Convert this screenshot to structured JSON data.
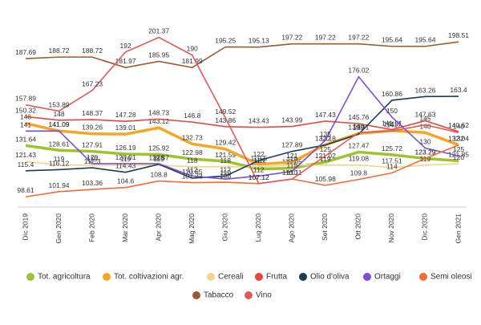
{
  "chart_data": {
    "type": "line",
    "categories": [
      "Dic 2019",
      "Gen 2020",
      "Feb 2020",
      "Mar 2020",
      "Apr 2020",
      "Mag 2020",
      "Giu 2020",
      "Lug 2020",
      "Ago 2020",
      "Set 2020",
      "Ott 2020",
      "Nov 2020",
      "Dic 2020",
      "Gen 2021"
    ],
    "ylim": [
      92,
      210
    ],
    "series": [
      {
        "name": "Tot. agricoltura",
        "color": "#9dc42f",
        "values": [
          131.64,
          128.61,
          127.91,
          126.19,
          125.92,
          122.98,
          121.59,
          116.5,
          117.05,
          121.02,
          127.47,
          125.72,
          123.29,
          121.85
        ]
      },
      {
        "name": "Tot. coltivazioni agr.",
        "color": "#f5a623",
        "values": [
          146,
          141.09,
          139.26,
          139.01,
          143.12,
          132.73,
          129.42,
          119.5,
          121,
          132.18,
          139.41,
          141.3,
          140,
          132.04
        ]
      },
      {
        "name": "Cereali",
        "color": "#f0d58a",
        "values": [
          121.43,
          119,
          119,
          119,
          119,
          118,
          118,
          118,
          119,
          119,
          119.08,
          117.51,
          119,
          120
        ]
      },
      {
        "name": "Frutta",
        "color": "#e8453c",
        "values": [
          150.32,
          148,
          148.37,
          147.28,
          148.73,
          146.8,
          143.86,
          143.43,
          143.99,
          147.43,
          145.76,
          141.91,
          147.63,
          140.62
        ]
      },
      {
        "name": "Olio d'oliva",
        "color": "#1c3d50",
        "values": [
          115.4,
          116.12,
          117.3,
          114.43,
          119.57,
          110.65,
          112,
          122,
          127.89,
          132,
          139,
          160.86,
          163.26,
          163.4
        ]
      },
      {
        "name": "Ortaggi",
        "color": "#7b4fd6",
        "values": [
          141,
          141.09,
          120,
          120.01,
          120,
          112,
          110,
          112,
          115,
          135,
          176.02,
          150,
          130,
          125
        ]
      },
      {
        "name": "Semi oleosi",
        "color": "#f26b3a",
        "values": [
          98.61,
          101.94,
          103.36,
          104.6,
          108.8,
          107.73,
          108,
          107.12,
          110.11,
          105.98,
          109.8,
          114,
          123.29,
          132
        ]
      },
      {
        "name": "Tabacco",
        "color": "#9c5a2e",
        "values": [
          187.69,
          188.72,
          188.72,
          181.97,
          185.95,
          181.99,
          195.25,
          195.13,
          197.22,
          197.22,
          197.22,
          195.64,
          195.64,
          198.51
        ]
      },
      {
        "name": "Vino",
        "color": "#e05a5a",
        "values": [
          157.89,
          153.89,
          167.23,
          192,
          201.37,
          190,
          149.52,
          107.12,
          110,
          125,
          140,
          141,
          145,
          140
        ]
      }
    ]
  }
}
